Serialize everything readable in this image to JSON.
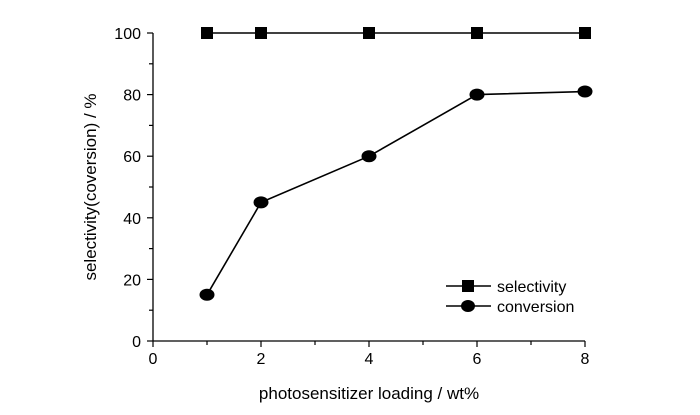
{
  "chart_data": {
    "type": "line",
    "title": "",
    "xlabel": "photosensitizer loading / wt%",
    "ylabel": "selectivity(coversion) / %",
    "xlim": [
      0,
      8
    ],
    "ylim": [
      0,
      100
    ],
    "x_ticks": [
      "0",
      "2",
      "4",
      "6",
      "8"
    ],
    "y_ticks": [
      "0",
      "20",
      "40",
      "60",
      "80",
      "100"
    ],
    "grid": false,
    "legend_position": "bottom-right",
    "series": [
      {
        "name": "selectivity",
        "marker": "square",
        "color": "#000000",
        "x": [
          1,
          2,
          4,
          6,
          8
        ],
        "y": [
          100,
          100,
          100,
          100,
          100
        ]
      },
      {
        "name": "conversion",
        "marker": "circle",
        "color": "#000000",
        "x": [
          1,
          2,
          4,
          6,
          8
        ],
        "y": [
          15,
          45,
          60,
          80,
          81
        ]
      }
    ]
  }
}
